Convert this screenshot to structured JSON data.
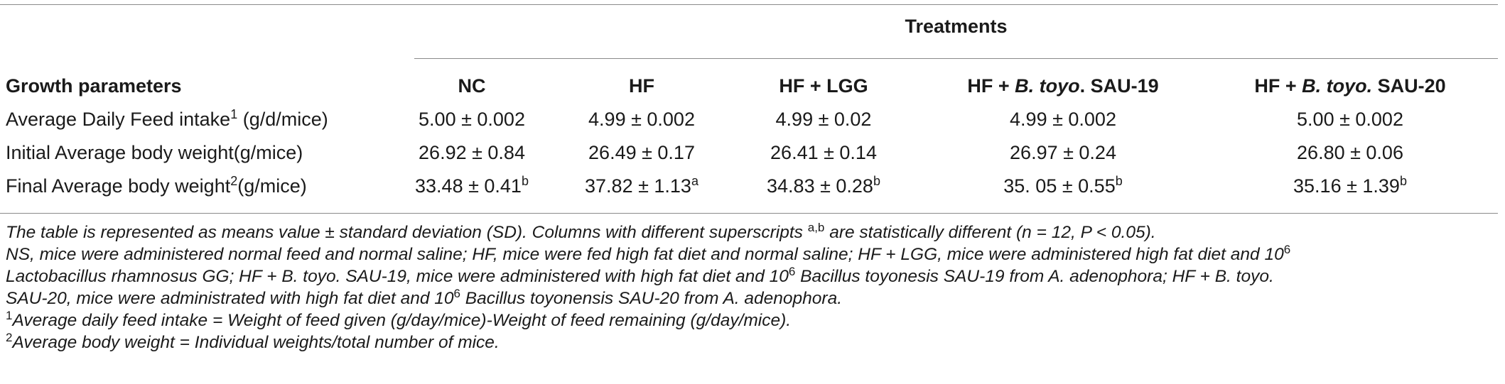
{
  "header": {
    "treatments_label": "Treatments",
    "row_header": "Growth parameters",
    "col_nc": "NC",
    "col_hf": "HF",
    "col_hf_lgg": "HF + LGG",
    "col_s19_pre": "HF + ",
    "col_s19_it": "B. toyo",
    "col_s19_post": ". SAU-19",
    "col_s20_pre": "HF + ",
    "col_s20_it": "B. toyo.",
    "col_s20_post": " SAU-20"
  },
  "rows": [
    {
      "label": "Average Daily Feed intake",
      "label_sup": "1",
      "label_tail": " (g/d/mice)",
      "values": [
        "5.00 ± 0.002",
        "4.99 ± 0.002",
        "4.99 ± 0.02",
        "4.99 ± 0.002",
        "5.00 ± 0.002"
      ],
      "sups": [
        "",
        "",
        "",
        "",
        ""
      ]
    },
    {
      "label": "Initial Average body weight(g/mice)",
      "label_sup": "",
      "label_tail": "",
      "values": [
        "26.92 ± 0.84",
        "26.49 ± 0.17",
        "26.41 ± 0.14",
        "26.97 ± 0.24",
        "26.80 ± 0.06"
      ],
      "sups": [
        "",
        "",
        "",
        "",
        ""
      ]
    },
    {
      "label": "Final Average body weight",
      "label_sup": "2",
      "label_tail": "(g/mice)",
      "values": [
        "33.48 ± 0.41",
        "37.82 ± 1.13",
        "34.83 ± 0.28",
        "35. 05 ± 0.55",
        "35.16 ± 1.39"
      ],
      "sups": [
        "b",
        "a",
        "b",
        "b",
        "b"
      ]
    }
  ],
  "notes": {
    "line1_a": "The table is represented as means value ± standard deviation (SD). Columns with different superscripts ",
    "line1_sup": "a,b",
    "line1_b": " are statistically different (n = 12, P < 0.05).",
    "line2_a": "NS, mice were administered normal feed and normal saline; HF, mice were fed high fat diet and normal saline; HF + LGG, mice were administered high fat diet and 10",
    "line2_sup": "6",
    "line3_a": "Lactobacillus rhamnosus GG; HF + B. toyo. SAU-19, mice were administered with high fat diet and 10",
    "line3_sup": "6",
    "line3_b": " Bacillus toyonesis SAU-19 from A. adenophora; HF + B. toyo.",
    "line4_a": "SAU-20, mice were administrated with high fat diet and 10",
    "line4_sup": "6",
    "line4_b": " Bacillus toyonensis SAU-20 from A. adenophora.",
    "fn1_mark": "1",
    "fn1_text": "Average daily feed intake = Weight of feed given (g/day/mice)-Weight of feed remaining (g/day/mice).",
    "fn2_mark": "2",
    "fn2_text": "Average body weight = Individual weights/total number of mice."
  }
}
